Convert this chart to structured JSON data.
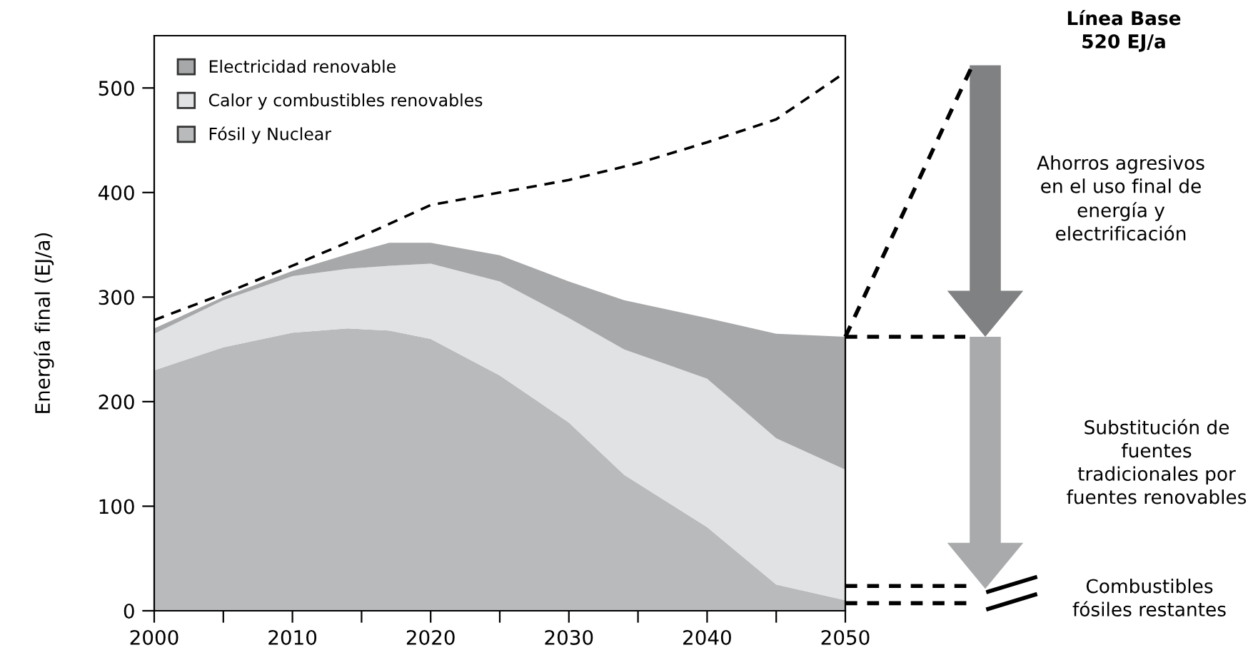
{
  "chart_data": {
    "type": "area",
    "stacked": true,
    "ylabel": "Energía final (EJ/a)",
    "x": [
      2000,
      2005,
      2010,
      2014,
      2017,
      2020,
      2025,
      2030,
      2034,
      2040,
      2045,
      2050
    ],
    "series": [
      {
        "name": "Fósil y Nuclear",
        "color": "#b9babc",
        "values": [
          230,
          252,
          266,
          270,
          268,
          260,
          225,
          180,
          130,
          80,
          25,
          10
        ]
      },
      {
        "name": "Calor y combustibles renovables",
        "color": "#e1e2e3",
        "values": [
          35,
          45,
          54,
          57,
          62,
          72,
          90,
          100,
          120,
          142,
          140,
          125
        ]
      },
      {
        "name": "Electricidad renovable",
        "color": "#a7a8aa",
        "values": [
          5,
          3,
          5,
          14,
          22,
          20,
          25,
          35,
          47,
          58,
          100,
          127
        ]
      },
      {
        "type": "line",
        "color": "#000000",
        "line_style": "dashed",
        "x": [
          2000,
          2005,
          2010,
          2015,
          2020,
          2025,
          2030,
          2035,
          2040,
          2045,
          2050
        ],
        "values": [
          278,
          303,
          330,
          358,
          388,
          400,
          412,
          428,
          448,
          470,
          515
        ]
      }
    ],
    "xlim": [
      2000,
      2050
    ],
    "ylim": [
      0,
      550
    ],
    "xticks": [
      2000,
      {
        "value": 2005,
        "label": null
      },
      2010,
      {
        "value": 2015,
        "label": null
      },
      2020,
      {
        "value": 2025,
        "label": null
      },
      2030,
      {
        "value": 2035,
        "label": null
      },
      2040,
      {
        "value": 2045,
        "label": null
      },
      2050
    ],
    "yticks": [
      0,
      100,
      200,
      300,
      400,
      500
    ],
    "grid": false,
    "legend": "top left",
    "annotations": [
      "Línea Base\n520 EJ/a",
      "Ahorros agresivos\nen el uso final de\nenergía y\nelectrificación",
      "Substitución de\nfuentes\ntradicionales por\nfuentes renovables",
      "Combustibles\nfósiles restantes"
    ]
  }
}
